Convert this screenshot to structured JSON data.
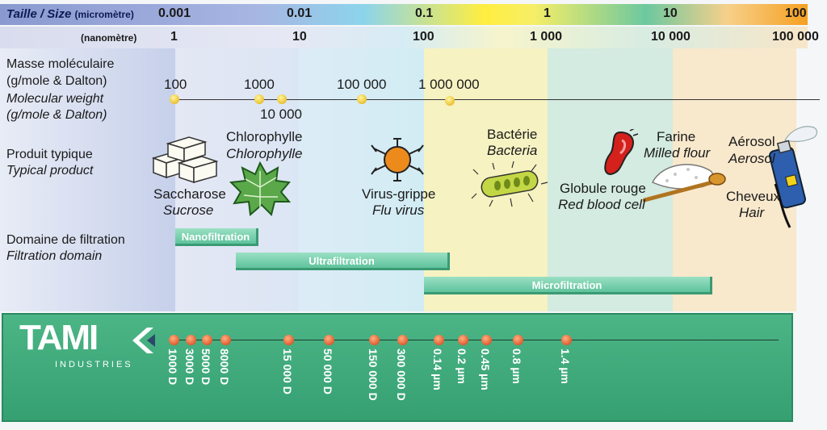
{
  "header": {
    "size_label_bold": "Taille / Size",
    "size_unit": "(micromètre)",
    "nm_unit": "(nanomètre)",
    "micro_ticks": [
      "0.001",
      "0.01",
      "0.1",
      "1",
      "10",
      "100"
    ],
    "nano_ticks": [
      "1",
      "10",
      "100",
      "1 000",
      "10 000",
      "100 000"
    ]
  },
  "rows": {
    "mw_fr_1": "Masse moléculaire",
    "mw_fr_2": "(g/mole & Dalton)",
    "mw_en_1": "Molecular weight",
    "mw_en_2": "(g/mole & Dalton)",
    "product_fr": "Produit typique",
    "product_en": "Typical product",
    "domain_fr": "Domaine de filtration",
    "domain_en": "Filtration domain"
  },
  "mw_labels": [
    "100",
    "1000",
    "10 000",
    "100 000",
    "1 000 000"
  ],
  "products": {
    "sucrose_fr": "Saccharose",
    "sucrose_en": "Sucrose",
    "chloro_fr": "Chlorophylle",
    "chloro_en": "Chlorophylle",
    "virus_fr": "Virus-grippe",
    "virus_en": "Flu virus",
    "bacteria_fr": "Bactérie",
    "bacteria_en": "Bacteria",
    "blood_fr": "Globule rouge",
    "blood_en": "Red blood cell",
    "flour_fr": "Farine",
    "flour_en": "Milled flour",
    "aerosol_fr": "Aérosol",
    "aerosol_en": "Aerosol",
    "hair_fr": "Cheveux",
    "hair_en": "Hair"
  },
  "domains": {
    "nano": "Nanofiltration",
    "ultra": "Ultrafiltration",
    "micro": "Microfiltration"
  },
  "brand": {
    "name": "TAMI",
    "sub": "INDUSTRIES"
  },
  "tami_ratings": [
    "1000 D",
    "3000 D",
    "5000 D",
    "8000 D",
    "15 000 D",
    "50 000 D",
    "150 000 D",
    "300 000 D",
    "0.14 µm",
    "0.2 µm",
    "0.45 µm",
    "0.8 µm",
    "1.4 µm"
  ],
  "colors": {
    "band_blue": "#c9d3ea",
    "band_lightblue": "#d3ecf4",
    "band_yellow": "#f7f2c0",
    "band_green": "#d2ece0",
    "band_orange": "#f9e6c7",
    "green_panel": "#3aa878",
    "bar_green": "#6fc8a3"
  }
}
